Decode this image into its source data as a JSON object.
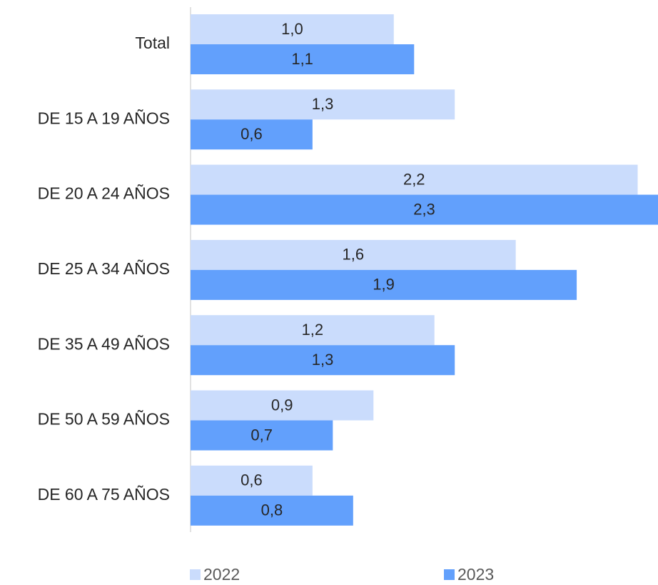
{
  "chart_data": {
    "type": "bar",
    "orientation": "horizontal",
    "categories": [
      "Total",
      "DE 15 A 19 AÑOS",
      "DE 20 A 24 AÑOS",
      "DE 25 A 34 AÑOS",
      "DE 35 A 49 AÑOS",
      "DE 50 A 59 AÑOS",
      "DE 60 A 75 AÑOS"
    ],
    "series": [
      {
        "name": "2022",
        "color": "#cadcfc",
        "values": [
          1.0,
          1.3,
          2.2,
          1.6,
          1.2,
          0.9,
          0.6
        ],
        "value_labels": [
          "1,0",
          "1,3",
          "2,2",
          "1,6",
          "1,2",
          "0,9",
          "0,6"
        ]
      },
      {
        "name": "2023",
        "color": "#62a0fc",
        "values": [
          1.1,
          0.6,
          2.3,
          1.9,
          1.3,
          0.7,
          0.8
        ],
        "value_labels": [
          "1,1",
          "0,6",
          "2,3",
          "1,9",
          "1,3",
          "0,7",
          "0,8"
        ]
      }
    ],
    "legend": "bottom"
  }
}
